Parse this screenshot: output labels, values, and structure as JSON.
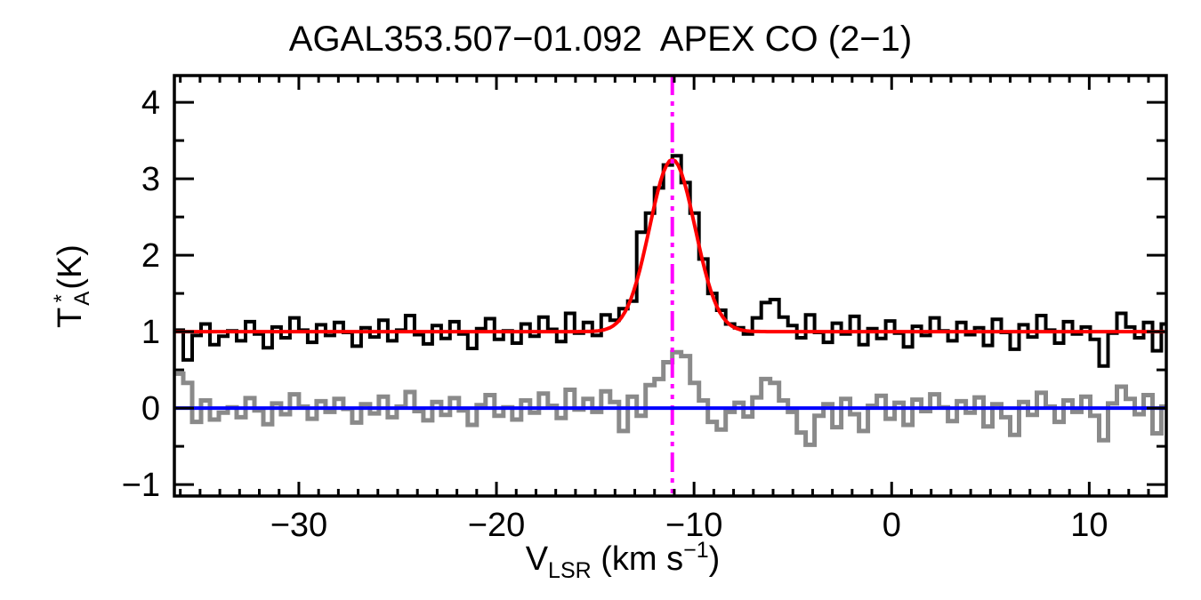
{
  "background": "#FFFFFF",
  "text": {
    "title": "AGAL353.507−01.092  APEX CO (2−1)",
    "ylabel": {
      "t": "T",
      "sup": "*",
      "sub": "A",
      "unit": " (K)"
    },
    "xlabel": {
      "v": "V",
      "sub": "LSR",
      "unit_pre": " (km s",
      "sup": "−1",
      "unit_post": ")"
    }
  },
  "colors": {
    "spectrum": "#000000",
    "residual": "#8A8A8A",
    "fit": "#FF0000",
    "zero_baseline": "#0000FF",
    "systemic_velocity": "#FF00FF",
    "frame": "#000000"
  },
  "chart_data": {
    "type": "line",
    "title": "AGAL353.507−01.092  APEX CO (2−1)",
    "xlabel": "V_LSR (km s^-1)",
    "ylabel": "T_A^* (K)",
    "xlim": [
      -36.3,
      13.9
    ],
    "ylim": [
      -1.15,
      4.35
    ],
    "grid": false,
    "legend": "none",
    "x_major_ticks": [
      -30,
      -20,
      -10,
      0,
      10
    ],
    "x_tick_labels": [
      "−30",
      "−20",
      "−10",
      "0",
      "10"
    ],
    "x_minor_step": 1,
    "y_major_ticks": [
      -1,
      0,
      1,
      2,
      3,
      4
    ],
    "y_tick_labels": [
      "−1",
      "0",
      "1",
      "2",
      "3",
      "4"
    ],
    "y_minor_step": 0.5,
    "v_start": -36.3,
    "dv": 0.45,
    "series": [
      {
        "name": "spectrum",
        "style": "histogram",
        "color": "#000000",
        "line_width": 4,
        "values": [
          1.02,
          0.63,
          0.95,
          1.1,
          0.83,
          0.94,
          1.01,
          0.88,
          1.13,
          0.97,
          0.79,
          1.06,
          0.92,
          1.18,
          1.02,
          0.86,
          1.09,
          0.95,
          1.12,
          0.99,
          0.81,
          1.05,
          0.93,
          1.15,
          0.88,
          1.02,
          1.21,
          0.96,
          0.84,
          1.08,
          0.91,
          1.13,
          0.97,
          0.78,
          1.04,
          1.17,
          0.9,
          1.01,
          0.85,
          1.1,
          0.94,
          1.19,
          1.03,
          0.87,
          1.24,
          0.98,
          1.12,
          0.95,
          1.22,
          1.15,
          1.3,
          1.4,
          2.3,
          2.55,
          2.88,
          3.18,
          3.3,
          2.95,
          2.55,
          1.95,
          1.5,
          1.28,
          1.1,
          1.05,
          0.97,
          1.18,
          1.38,
          1.42,
          1.19,
          1.08,
          0.92,
          1.22,
          0.99,
          0.86,
          1.11,
          0.97,
          1.2,
          0.83,
          1.04,
          0.91,
          1.14,
          0.98,
          0.8,
          1.07,
          0.95,
          1.18,
          1.01,
          0.88,
          1.12,
          0.96,
          1.05,
          0.82,
          1.16,
          0.99,
          0.77,
          1.09,
          0.93,
          1.21,
          1.02,
          0.85,
          1.13,
          0.97,
          1.06,
          0.9,
          0.55,
          0.98,
          1.24,
          1.06,
          0.92,
          1.12,
          0.75,
          1.1
        ]
      },
      {
        "name": "residual",
        "style": "histogram",
        "color": "#8A8A8A",
        "line_width": 5,
        "values": [
          0.45,
          0.33,
          -0.18,
          0.1,
          -0.15,
          -0.06,
          0.01,
          -0.12,
          0.13,
          -0.03,
          -0.21,
          0.06,
          -0.08,
          0.18,
          0.02,
          -0.14,
          0.09,
          -0.05,
          0.12,
          -0.01,
          -0.19,
          0.05,
          -0.07,
          0.15,
          -0.12,
          0.02,
          0.21,
          -0.04,
          -0.16,
          0.08,
          -0.09,
          0.13,
          -0.03,
          -0.22,
          0.04,
          0.17,
          -0.1,
          0.01,
          -0.15,
          0.1,
          -0.06,
          0.19,
          0.03,
          -0.13,
          0.24,
          -0.02,
          0.12,
          -0.05,
          0.22,
          0.08,
          -0.3,
          0.15,
          -0.1,
          0.3,
          0.38,
          0.6,
          0.73,
          0.68,
          0.33,
          0.1,
          -0.18,
          -0.28,
          -0.05,
          0.07,
          -0.11,
          0.14,
          0.38,
          0.33,
          0.1,
          -0.05,
          -0.32,
          -0.48,
          -0.1,
          0.05,
          -0.25,
          0.12,
          -0.08,
          -0.3,
          0.03,
          0.16,
          -0.14,
          0.07,
          -0.22,
          0.11,
          -0.04,
          0.18,
          0.01,
          -0.17,
          0.09,
          -0.06,
          0.14,
          -0.24,
          0.05,
          -0.12,
          -0.35,
          0.08,
          -0.09,
          0.2,
          0.02,
          -0.18,
          0.1,
          -0.05,
          0.15,
          -0.1,
          -0.42,
          0.06,
          0.28,
          0.12,
          -0.08,
          0.17,
          -0.33,
          0.02
        ]
      },
      {
        "name": "gaussian_fit",
        "style": "curve",
        "color": "#FF0000",
        "line_width": 4,
        "baseline": 1.0,
        "amplitude": 2.25,
        "center": -11.1,
        "sigma": 1.15
      },
      {
        "name": "zero_baseline",
        "style": "hline",
        "color": "#0000FF",
        "line_width": 4,
        "y": 0
      },
      {
        "name": "systemic_velocity",
        "style": "vline",
        "color": "#FF00FF",
        "line_width": 4,
        "dash": "dash-dot-dot",
        "x": -11.1
      }
    ]
  }
}
